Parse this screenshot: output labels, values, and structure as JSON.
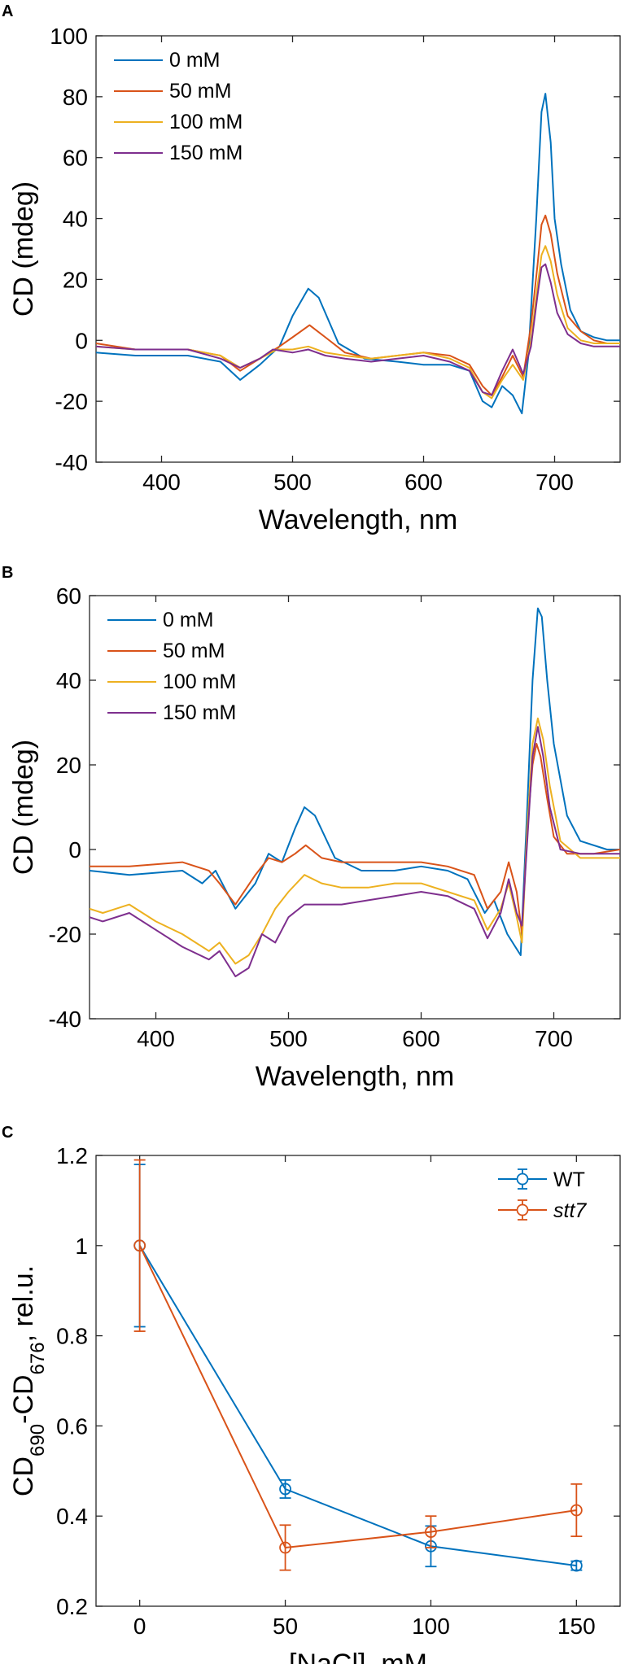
{
  "chart_data": [
    {
      "panel": "A",
      "type": "line",
      "xlabel": "Wavelength, nm",
      "ylabel": "CD (mdeg)",
      "xlim": [
        350,
        750
      ],
      "ylim": [
        -40,
        100
      ],
      "xticks": [
        400,
        500,
        600,
        700
      ],
      "yticks": [
        -40,
        -20,
        0,
        20,
        40,
        60,
        80,
        100
      ],
      "legend": "top-left",
      "series": [
        {
          "name": "0 mM",
          "color": "#0072BD",
          "x": [
            350,
            380,
            420,
            445,
            460,
            475,
            490,
            500,
            512,
            520,
            535,
            555,
            580,
            600,
            620,
            635,
            645,
            652,
            660,
            668,
            675,
            680,
            686,
            690,
            693,
            697,
            700,
            705,
            712,
            720,
            730,
            740,
            750
          ],
          "y": [
            -4,
            -5,
            -5,
            -7,
            -13,
            -8,
            -2,
            8,
            17,
            14,
            -1,
            -6,
            -7,
            -8,
            -8,
            -10,
            -20,
            -22,
            -15,
            -18,
            -24,
            -5,
            40,
            75,
            81,
            65,
            40,
            25,
            10,
            3,
            1,
            0,
            0
          ]
        },
        {
          "name": "50 mM",
          "color": "#D95319",
          "x": [
            350,
            380,
            420,
            445,
            460,
            475,
            490,
            500,
            513,
            525,
            540,
            560,
            580,
            600,
            620,
            635,
            645,
            652,
            660,
            668,
            676,
            682,
            687,
            690,
            693,
            697,
            702,
            710,
            720,
            730,
            740,
            750
          ],
          "y": [
            -1,
            -3,
            -3,
            -5,
            -10,
            -6,
            -2,
            1,
            5,
            1,
            -4,
            -6,
            -5,
            -4,
            -5,
            -8,
            -15,
            -18,
            -12,
            -5,
            -12,
            5,
            25,
            38,
            41,
            35,
            22,
            8,
            3,
            0,
            -1,
            -1
          ]
        },
        {
          "name": "100 mM",
          "color": "#EDB120",
          "x": [
            350,
            380,
            420,
            445,
            460,
            475,
            488,
            500,
            512,
            525,
            540,
            560,
            580,
            600,
            620,
            635,
            645,
            652,
            660,
            668,
            676,
            682,
            687,
            690,
            693,
            697,
            702,
            710,
            720,
            730,
            740,
            750
          ],
          "y": [
            -2,
            -3,
            -3,
            -5,
            -9,
            -6,
            -3,
            -3,
            -2,
            -4,
            -5,
            -6,
            -5,
            -4,
            -6,
            -9,
            -17,
            -19,
            -13,
            -8,
            -13,
            0,
            18,
            28,
            31,
            26,
            15,
            4,
            0,
            -1,
            -1,
            -1
          ]
        },
        {
          "name": "150 mM",
          "color": "#7E2F8E",
          "x": [
            350,
            380,
            420,
            445,
            460,
            475,
            485,
            500,
            512,
            525,
            540,
            560,
            580,
            600,
            620,
            635,
            645,
            652,
            660,
            668,
            676,
            682,
            687,
            690,
            693,
            697,
            702,
            710,
            720,
            730,
            740,
            750
          ],
          "y": [
            -2,
            -3,
            -3,
            -6,
            -9,
            -6,
            -3,
            -4,
            -3,
            -5,
            -6,
            -7,
            -6,
            -5,
            -7,
            -10,
            -17,
            -18,
            -10,
            -3,
            -11,
            -2,
            15,
            24,
            25,
            19,
            9,
            2,
            -1,
            -2,
            -2,
            -2
          ]
        }
      ]
    },
    {
      "panel": "B",
      "type": "line",
      "xlabel": "Wavelength, nm",
      "ylabel": "CD (mdeg)",
      "xlim": [
        350,
        750
      ],
      "ylim": [
        -40,
        60
      ],
      "xticks": [
        400,
        500,
        600,
        700
      ],
      "yticks": [
        -40,
        -20,
        0,
        20,
        40,
        60
      ],
      "legend": "top-left",
      "series": [
        {
          "name": "0 mM",
          "color": "#0072BD",
          "x": [
            350,
            380,
            420,
            435,
            445,
            460,
            475,
            485,
            495,
            505,
            512,
            520,
            535,
            555,
            580,
            600,
            620,
            635,
            648,
            655,
            665,
            675,
            680,
            684,
            688,
            691,
            695,
            700,
            710,
            720,
            740,
            750
          ],
          "y": [
            -5,
            -6,
            -5,
            -8,
            -5,
            -14,
            -8,
            -1,
            -3,
            5,
            10,
            8,
            -2,
            -5,
            -5,
            -4,
            -5,
            -7,
            -15,
            -12,
            -20,
            -25,
            10,
            40,
            57,
            55,
            40,
            25,
            8,
            2,
            0,
            0
          ]
        },
        {
          "name": "50 mM",
          "color": "#D95319",
          "x": [
            350,
            380,
            420,
            440,
            448,
            460,
            475,
            485,
            495,
            505,
            513,
            525,
            540,
            560,
            580,
            600,
            620,
            640,
            650,
            660,
            666,
            672,
            676,
            680,
            684,
            687,
            690,
            695,
            700,
            710,
            730,
            750
          ],
          "y": [
            -4,
            -4,
            -3,
            -5,
            -8,
            -13,
            -6,
            -2,
            -3,
            -1,
            1,
            -2,
            -3,
            -3,
            -3,
            -3,
            -4,
            -6,
            -14,
            -10,
            -3,
            -10,
            -20,
            5,
            20,
            25,
            22,
            12,
            3,
            -1,
            -1,
            0
          ]
        },
        {
          "name": "100 mM",
          "color": "#EDB120",
          "x": [
            350,
            360,
            380,
            400,
            420,
            440,
            448,
            460,
            470,
            480,
            490,
            500,
            512,
            525,
            540,
            560,
            580,
            600,
            620,
            640,
            650,
            660,
            666,
            672,
            676,
            680,
            684,
            688,
            692,
            697,
            705,
            720,
            740,
            750
          ],
          "y": [
            -14,
            -15,
            -13,
            -17,
            -20,
            -24,
            -22,
            -27,
            -25,
            -20,
            -14,
            -10,
            -6,
            -8,
            -9,
            -9,
            -8,
            -8,
            -10,
            -12,
            -19,
            -14,
            -8,
            -16,
            -22,
            5,
            25,
            31,
            26,
            15,
            2,
            -2,
            -2,
            -2
          ]
        },
        {
          "name": "150 mM",
          "color": "#7E2F8E",
          "x": [
            350,
            360,
            380,
            400,
            420,
            440,
            448,
            460,
            470,
            480,
            490,
            500,
            512,
            525,
            540,
            560,
            580,
            600,
            620,
            640,
            650,
            660,
            666,
            672,
            676,
            680,
            684,
            688,
            692,
            697,
            705,
            720,
            740,
            750
          ],
          "y": [
            -16,
            -17,
            -15,
            -19,
            -23,
            -26,
            -24,
            -30,
            -28,
            -20,
            -22,
            -16,
            -13,
            -13,
            -13,
            -12,
            -11,
            -10,
            -11,
            -14,
            -21,
            -15,
            -7,
            -15,
            -18,
            2,
            22,
            29,
            22,
            10,
            0,
            -1,
            -1,
            -1
          ]
        }
      ]
    },
    {
      "panel": "C",
      "type": "line",
      "xlabel": "[NaCl], mM",
      "ylabel_main": "CD",
      "ylabel_sub1": "690",
      "ylabel_mid": "-CD",
      "ylabel_sub2": "676",
      "ylabel_tail": ", rel.u.",
      "xlim": [
        -15,
        165
      ],
      "ylim": [
        0.2,
        1.2
      ],
      "xticks": [
        0,
        50,
        100,
        150
      ],
      "yticks": [
        0.2,
        0.4,
        0.6,
        0.8,
        1.0,
        1.2
      ],
      "legend": "top-right",
      "series": [
        {
          "name": "WT",
          "color": "#0072BD",
          "italic": false,
          "x": [
            0,
            50,
            100,
            150
          ],
          "y": [
            1.0,
            0.46,
            0.333,
            0.29
          ],
          "err": [
            0.18,
            0.02,
            0.045,
            0.01
          ]
        },
        {
          "name": "stt7",
          "color": "#D95319",
          "italic": true,
          "x": [
            0,
            50,
            100,
            150
          ],
          "y": [
            1.0,
            0.33,
            0.365,
            0.413
          ],
          "err": [
            0.19,
            0.05,
            0.035,
            0.058
          ]
        }
      ]
    }
  ]
}
